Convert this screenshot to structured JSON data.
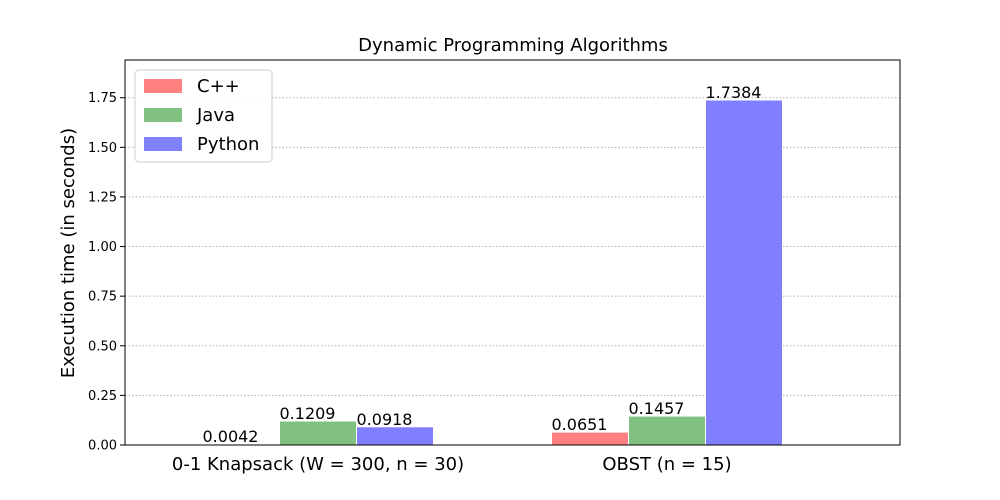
{
  "chart_data": {
    "type": "bar",
    "title": "Dynamic Programming Algorithms",
    "xlabel": "",
    "ylabel": "Execution time (in seconds)",
    "categories": [
      "0-1 Knapsack (W = 300, n = 30)",
      "OBST (n = 15)"
    ],
    "series": [
      {
        "name": "C++",
        "values": [
          0.0042,
          0.0651
        ],
        "labels": [
          "0.0042",
          "0.0651"
        ],
        "color": "#ff8080"
      },
      {
        "name": "Java",
        "values": [
          0.1209,
          0.1457
        ],
        "labels": [
          "0.1209",
          "0.1457"
        ],
        "color": "#80c080"
      },
      {
        "name": "Python",
        "values": [
          0.0918,
          1.7384
        ],
        "labels": [
          "0.0918",
          "1.7384"
        ],
        "color": "#8080ff"
      }
    ],
    "ylim": [
      0,
      1.94
    ],
    "yticks": [
      "0.00",
      "0.25",
      "0.50",
      "0.75",
      "1.00",
      "1.25",
      "1.50",
      "1.75"
    ],
    "grid": "y-dotted",
    "legend_position": "top-left"
  }
}
